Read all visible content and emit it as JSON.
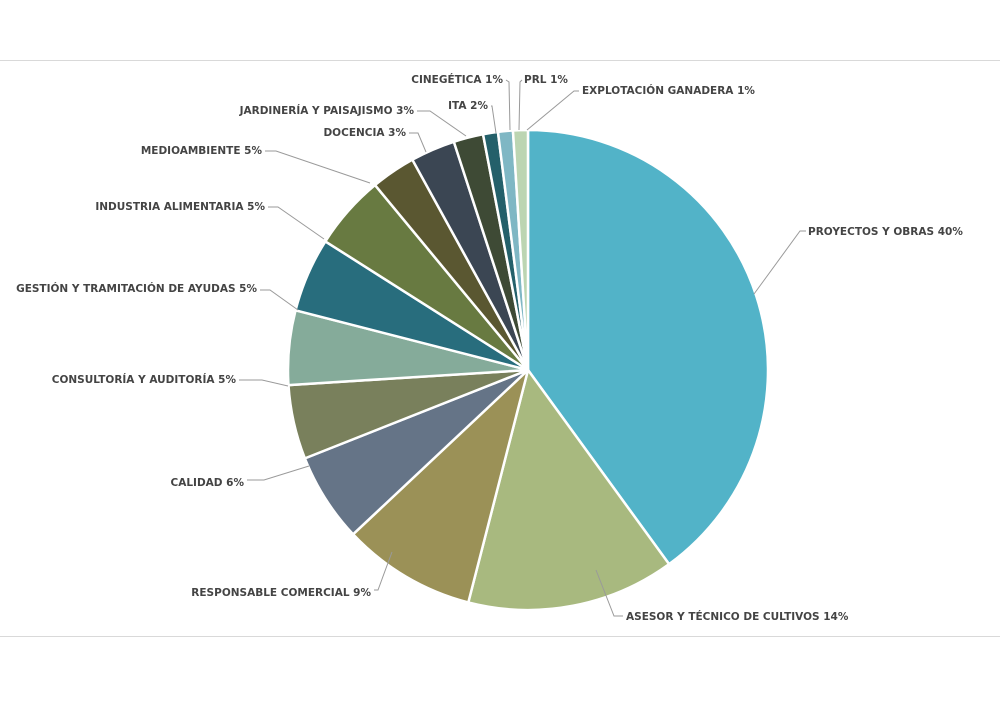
{
  "chart_data": {
    "type": "pie",
    "title": "",
    "slices": [
      {
        "label": "PROYECTOS Y OBRAS 40%",
        "value": 40,
        "color": "#52b3c8"
      },
      {
        "label": "ASESOR Y TÉCNICO DE CULTIVOS 14%",
        "value": 14,
        "color": "#a8b97f"
      },
      {
        "label": "RESPONSABLE COMERCIAL 9%",
        "value": 9,
        "color": "#9b9157"
      },
      {
        "label": "CALIDAD 6%",
        "value": 6,
        "color": "#657487"
      },
      {
        "label": "CONSULTORÍA Y AUDITORÍA 5%",
        "value": 5,
        "color": "#79805c"
      },
      {
        "label": "GESTIÓN Y TRAMITACIÓN DE AYUDAS 5%",
        "value": 5,
        "color": "#85ab9a"
      },
      {
        "label": "INDUSTRIA ALIMENTARIA 5%",
        "value": 5,
        "color": "#286d7d"
      },
      {
        "label": "MEDIOAMBIENTE 5%",
        "value": 5,
        "color": "#687a41"
      },
      {
        "label": "DOCENCIA 3%",
        "value": 3,
        "color": "#5a5731"
      },
      {
        "label": "JARDINERÍA Y PAISAJISMO 3%",
        "value": 3,
        "color": "#3b4653"
      },
      {
        "label": "ITA 2%",
        "value": 2,
        "color": "#3e4a35"
      },
      {
        "label": "CINEGÉTICA 1%",
        "value": 1,
        "color": "#24606a"
      },
      {
        "label": "PRL 1%",
        "value": 1,
        "color": "#7fb7c4"
      },
      {
        "label": "EXPLOTACIÓN GANADERA 1%",
        "value": 1,
        "color": "#bcd5b2"
      }
    ],
    "legend": "none"
  }
}
